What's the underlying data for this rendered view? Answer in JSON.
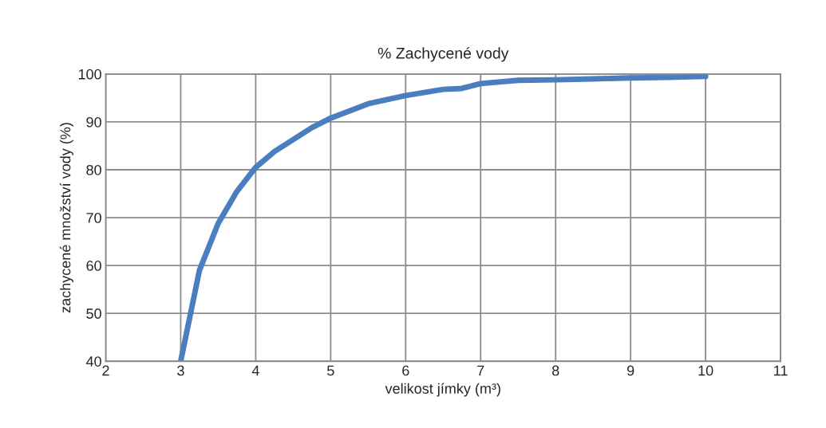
{
  "chart_data": {
    "type": "line",
    "title": "% Zachycené vody",
    "xlabel": "velikost jímky (m³)",
    "ylabel": "zachycené množství vody (%)",
    "x": [
      3,
      3.25,
      3.5,
      3.75,
      4,
      4.25,
      4.5,
      4.75,
      5,
      5.5,
      6,
      6.5,
      6.75,
      7,
      7.5,
      8,
      8.5,
      9,
      9.5,
      10
    ],
    "series": [
      {
        "color": "#4a7ebf",
        "values": [
          40,
          59,
          68.8,
          75.5,
          80.5,
          83.8,
          86.3,
          88.8,
          90.8,
          93.8,
          95.5,
          96.8,
          97,
          98,
          98.7,
          98.8,
          99,
          99.2,
          99.3,
          99.5
        ]
      }
    ],
    "xlim": [
      2,
      11
    ],
    "xticks": [
      2,
      3,
      4,
      5,
      6,
      7,
      8,
      9,
      10,
      11
    ],
    "ylim": [
      40,
      100
    ],
    "yticks": [
      40,
      50,
      60,
      70,
      80,
      90,
      100
    ],
    "grid": true,
    "legend": false,
    "marker": "none",
    "line_style": "solid"
  }
}
